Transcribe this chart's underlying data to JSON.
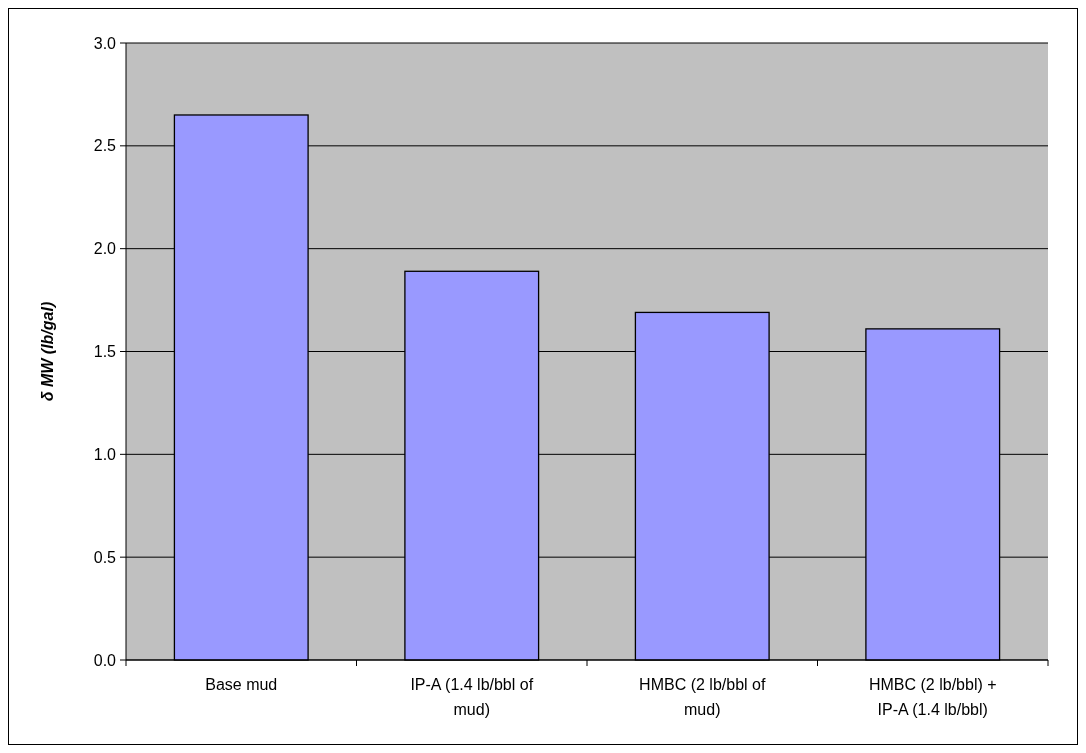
{
  "chart_data": {
    "type": "bar",
    "ylabel": "δ MW  (lb/gal)",
    "categories": [
      "Base mud",
      "IP-A (1.4 lb/bbl of mud)",
      "HMBC (2 lb/bbl of mud)",
      "HMBC (2 lb/bbl) + IP-A (1.4 lb/bbl)"
    ],
    "values": [
      2.65,
      1.89,
      1.69,
      1.61
    ],
    "color": "#9999ff",
    "ylim": [
      0,
      3
    ],
    "yticks": [
      {
        "value": 0,
        "label": "0.0"
      },
      {
        "value": 0.5,
        "label": "0.5"
      },
      {
        "value": 1,
        "label": "1.0"
      },
      {
        "value": 1.5,
        "label": "1.5"
      },
      {
        "value": 2,
        "label": "2.0"
      },
      {
        "value": 2.5,
        "label": "2.5"
      },
      {
        "value": 3,
        "label": "3.0"
      }
    ],
    "grid": "y"
  }
}
